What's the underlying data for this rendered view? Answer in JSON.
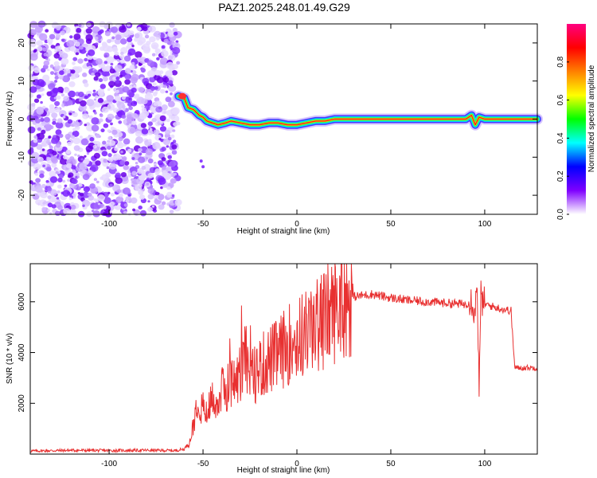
{
  "title": "PAZ1.2025.248.01.49.G29",
  "chart_data": [
    {
      "type": "heatmap",
      "name": "spectrogram",
      "xlabel": "Height of straight line (km)",
      "ylabel": "Frequency (Hz)",
      "xlim": [
        -142,
        128
      ],
      "ylim": [
        -25,
        25
      ],
      "xticks": [
        -100,
        -50,
        0,
        50,
        100
      ],
      "yticks": [
        -20,
        -10,
        0,
        10,
        20
      ],
      "noise_region": {
        "x_range": [
          -142,
          -63
        ],
        "description_value": "low-amplitude noise"
      },
      "signal_trace": {
        "x": [
          -63,
          -60,
          -58,
          -55,
          -52,
          -50,
          -48,
          -45,
          -42,
          -38,
          -35,
          -30,
          -25,
          -20,
          -15,
          -10,
          -5,
          0,
          5,
          10,
          15,
          20,
          25,
          30,
          40,
          60,
          80,
          90,
          93,
          95,
          97,
          100,
          110,
          120,
          128
        ],
        "y": [
          6,
          5.5,
          3,
          2.5,
          1,
          0.5,
          -0.5,
          -1,
          -1.5,
          -1,
          -0.5,
          -1,
          -1.5,
          -1.5,
          -1,
          -1,
          -1.5,
          -1.5,
          -1,
          -0.5,
          -0.5,
          0,
          0,
          0,
          0,
          0,
          0,
          0,
          1,
          -1.5,
          0.5,
          0,
          0,
          0,
          0
        ]
      },
      "colorbar": {
        "label": "Normalized spectral amplitude",
        "range": [
          0,
          1
        ],
        "ticks": [
          "0.0",
          "0.2",
          "0.4",
          "0.6",
          "0.8"
        ],
        "colors": [
          "#ffffff",
          "#7f00ff",
          "#0000ff",
          "#00ffff",
          "#00ff00",
          "#ffff00",
          "#ff8000",
          "#ff0000",
          "#ff0080"
        ]
      }
    },
    {
      "type": "line",
      "name": "snr",
      "xlabel": "Height of straight line (km)",
      "ylabel": "SNR (10 * v/v)",
      "xlim": [
        -142,
        128
      ],
      "ylim": [
        0,
        7500
      ],
      "xticks": [
        -100,
        -50,
        0,
        50,
        100
      ],
      "yticks": [
        2000,
        4000,
        6000
      ],
      "line_color": "#e83030",
      "x": [
        -142,
        -120,
        -100,
        -80,
        -65,
        -60,
        -57,
        -55,
        -53,
        -50,
        -48,
        -45,
        -42,
        -40,
        -35,
        -30,
        -28,
        -25,
        -20,
        -15,
        -10,
        -5,
        0,
        5,
        10,
        15,
        20,
        25,
        30,
        35,
        40,
        50,
        60,
        70,
        80,
        90,
        93,
        95,
        96,
        97,
        98,
        100,
        105,
        110,
        114,
        116,
        120,
        128
      ],
      "y": [
        120,
        150,
        140,
        150,
        140,
        200,
        500,
        1200,
        2200,
        1800,
        1500,
        2200,
        2000,
        2500,
        2800,
        3000,
        4500,
        2900,
        3400,
        3700,
        3900,
        4300,
        4500,
        4800,
        5000,
        5400,
        5700,
        6000,
        6200,
        6250,
        6300,
        6150,
        6050,
        6000,
        5950,
        5900,
        6100,
        5600,
        7000,
        2300,
        6200,
        5900,
        5800,
        5700,
        5650,
        3400,
        3400,
        3400
      ]
    }
  ]
}
